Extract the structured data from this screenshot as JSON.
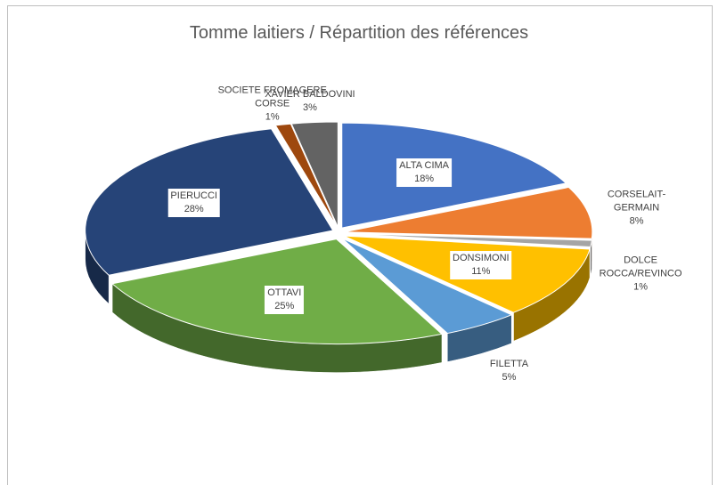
{
  "chart_data": {
    "type": "pie3d",
    "title": "Tomme laitiers / Répartition des références",
    "categories": [
      "ALTA CIMA",
      "CORSELAIT-GERMAIN",
      "DOLCE ROCCA/REVINCO",
      "DONSIMONI",
      "FILETTA",
      "OTTAVI",
      "PIERUCCI",
      "SOCIETE FROMAGERE CORSE",
      "XAVIER BALDOVINI"
    ],
    "values": [
      18,
      8,
      1,
      11,
      5,
      25,
      28,
      1,
      3
    ],
    "value_labels": [
      "18%",
      "8%",
      "1%",
      "11%",
      "5%",
      "25%",
      "28%",
      "1%",
      "3%"
    ],
    "colors": [
      "#4472c4",
      "#ed7d31",
      "#a5a5a5",
      "#ffc000",
      "#5b9bd5",
      "#70ad47",
      "#264478",
      "#9e480e",
      "#636363"
    ]
  }
}
